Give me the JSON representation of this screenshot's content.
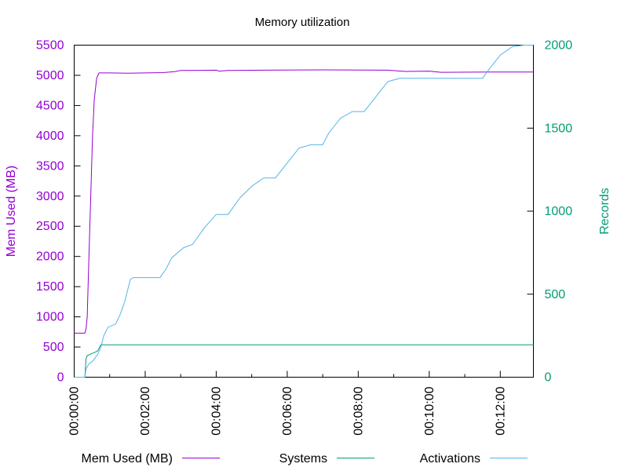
{
  "chart_data": {
    "type": "line",
    "title": "Memory utilization",
    "xlabel": "",
    "ylabel": "Mem Used (MB)",
    "y2label": "Records",
    "xlim": [
      0,
      776
    ],
    "ylim": [
      0,
      5500
    ],
    "y2lim": [
      0,
      2000
    ],
    "grid": false,
    "legend_position": "bottom",
    "x_ticks": [
      {
        "value": 0,
        "label": "00:00:00"
      },
      {
        "value": 120,
        "label": "00:02:00"
      },
      {
        "value": 240,
        "label": "00:04:00"
      },
      {
        "value": 360,
        "label": "00:06:00"
      },
      {
        "value": 480,
        "label": "00:08:00"
      },
      {
        "value": 600,
        "label": "00:10:00"
      },
      {
        "value": 720,
        "label": "00:12:00"
      }
    ],
    "y_ticks": [
      {
        "value": 0,
        "label": "0"
      },
      {
        "value": 500,
        "label": "500"
      },
      {
        "value": 1000,
        "label": "1000"
      },
      {
        "value": 1500,
        "label": "1500"
      },
      {
        "value": 2000,
        "label": "2000"
      },
      {
        "value": 2500,
        "label": "2500"
      },
      {
        "value": 3000,
        "label": "3000"
      },
      {
        "value": 3500,
        "label": "3500"
      },
      {
        "value": 4000,
        "label": "4000"
      },
      {
        "value": 4500,
        "label": "4500"
      },
      {
        "value": 5000,
        "label": "5000"
      },
      {
        "value": 5500,
        "label": "5500"
      }
    ],
    "y2_ticks": [
      {
        "value": 0,
        "label": "0"
      },
      {
        "value": 500,
        "label": "500"
      },
      {
        "value": 1000,
        "label": "1000"
      },
      {
        "value": 1500,
        "label": "1500"
      },
      {
        "value": 2000,
        "label": "2000"
      }
    ],
    "series": [
      {
        "name": "Mem Used (MB)",
        "axis": "y",
        "color": "#9400d3",
        "points": [
          [
            0,
            730
          ],
          [
            18,
            730
          ],
          [
            20,
            800
          ],
          [
            22,
            1000
          ],
          [
            25,
            2000
          ],
          [
            28,
            3000
          ],
          [
            31,
            4000
          ],
          [
            34,
            4600
          ],
          [
            38,
            4950
          ],
          [
            42,
            5040
          ],
          [
            60,
            5040
          ],
          [
            90,
            5035
          ],
          [
            150,
            5045
          ],
          [
            170,
            5060
          ],
          [
            180,
            5080
          ],
          [
            240,
            5085
          ],
          [
            245,
            5070
          ],
          [
            260,
            5080
          ],
          [
            320,
            5085
          ],
          [
            420,
            5090
          ],
          [
            530,
            5085
          ],
          [
            560,
            5065
          ],
          [
            600,
            5070
          ],
          [
            620,
            5050
          ],
          [
            700,
            5055
          ],
          [
            776,
            5055
          ]
        ]
      },
      {
        "name": "Systems",
        "axis": "y2",
        "color": "#009e73",
        "points": [
          [
            0,
            0
          ],
          [
            18,
            0
          ],
          [
            20,
            110
          ],
          [
            22,
            130
          ],
          [
            28,
            140
          ],
          [
            35,
            150
          ],
          [
            40,
            160
          ],
          [
            45,
            195
          ],
          [
            776,
            195
          ]
        ]
      },
      {
        "name": "Activations",
        "axis": "y2",
        "color": "#56b4e9",
        "points": [
          [
            0,
            0
          ],
          [
            18,
            0
          ],
          [
            20,
            50
          ],
          [
            25,
            80
          ],
          [
            32,
            100
          ],
          [
            40,
            140
          ],
          [
            45,
            180
          ],
          [
            50,
            250
          ],
          [
            57,
            300
          ],
          [
            70,
            320
          ],
          [
            78,
            380
          ],
          [
            85,
            450
          ],
          [
            95,
            590
          ],
          [
            100,
            600
          ],
          [
            145,
            600
          ],
          [
            155,
            650
          ],
          [
            165,
            720
          ],
          [
            185,
            780
          ],
          [
            200,
            800
          ],
          [
            220,
            900
          ],
          [
            240,
            980
          ],
          [
            260,
            980
          ],
          [
            280,
            1080
          ],
          [
            300,
            1150
          ],
          [
            320,
            1200
          ],
          [
            340,
            1200
          ],
          [
            360,
            1290
          ],
          [
            380,
            1380
          ],
          [
            400,
            1400
          ],
          [
            420,
            1400
          ],
          [
            430,
            1470
          ],
          [
            450,
            1560
          ],
          [
            470,
            1600
          ],
          [
            490,
            1600
          ],
          [
            510,
            1690
          ],
          [
            530,
            1780
          ],
          [
            550,
            1800
          ],
          [
            600,
            1800
          ],
          [
            650,
            1800
          ],
          [
            690,
            1800
          ],
          [
            700,
            1850
          ],
          [
            720,
            1940
          ],
          [
            740,
            1990
          ],
          [
            760,
            2000
          ],
          [
            776,
            2000
          ]
        ]
      }
    ]
  }
}
